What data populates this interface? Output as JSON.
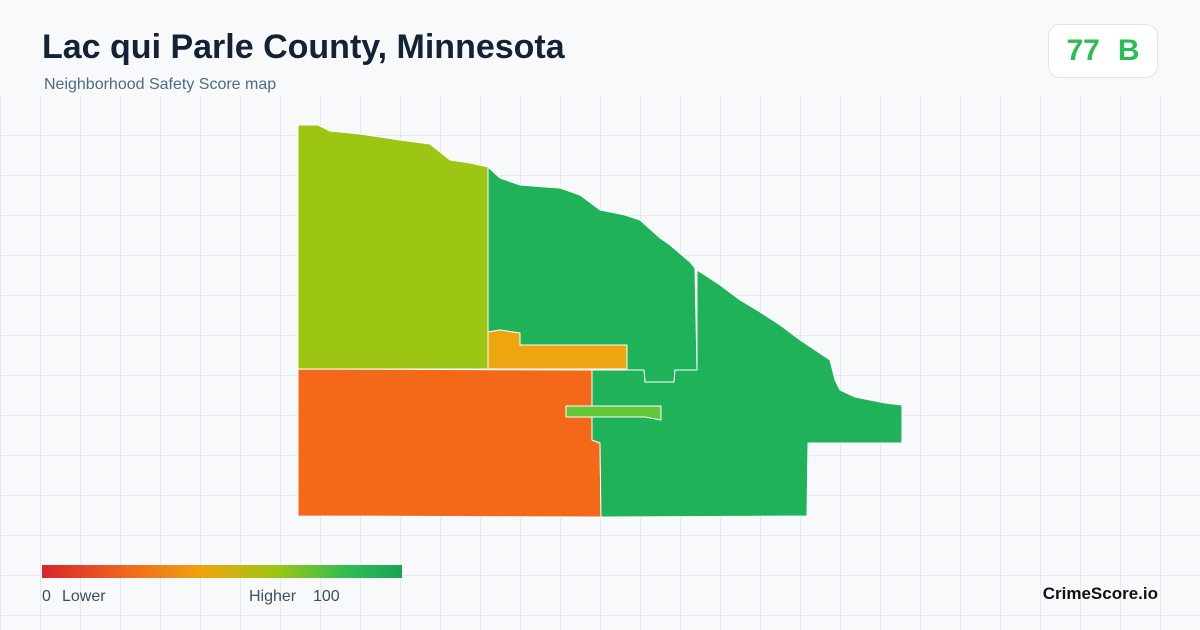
{
  "header": {
    "title": "Lac qui Parle County, Minnesota",
    "subtitle": "Neighborhood Safety Score map"
  },
  "score": {
    "value": 77,
    "grade": "B"
  },
  "legend": {
    "min": 0,
    "min_label": "Lower",
    "max_label": "Higher",
    "max": 100
  },
  "brand": "CrimeScore.io"
}
